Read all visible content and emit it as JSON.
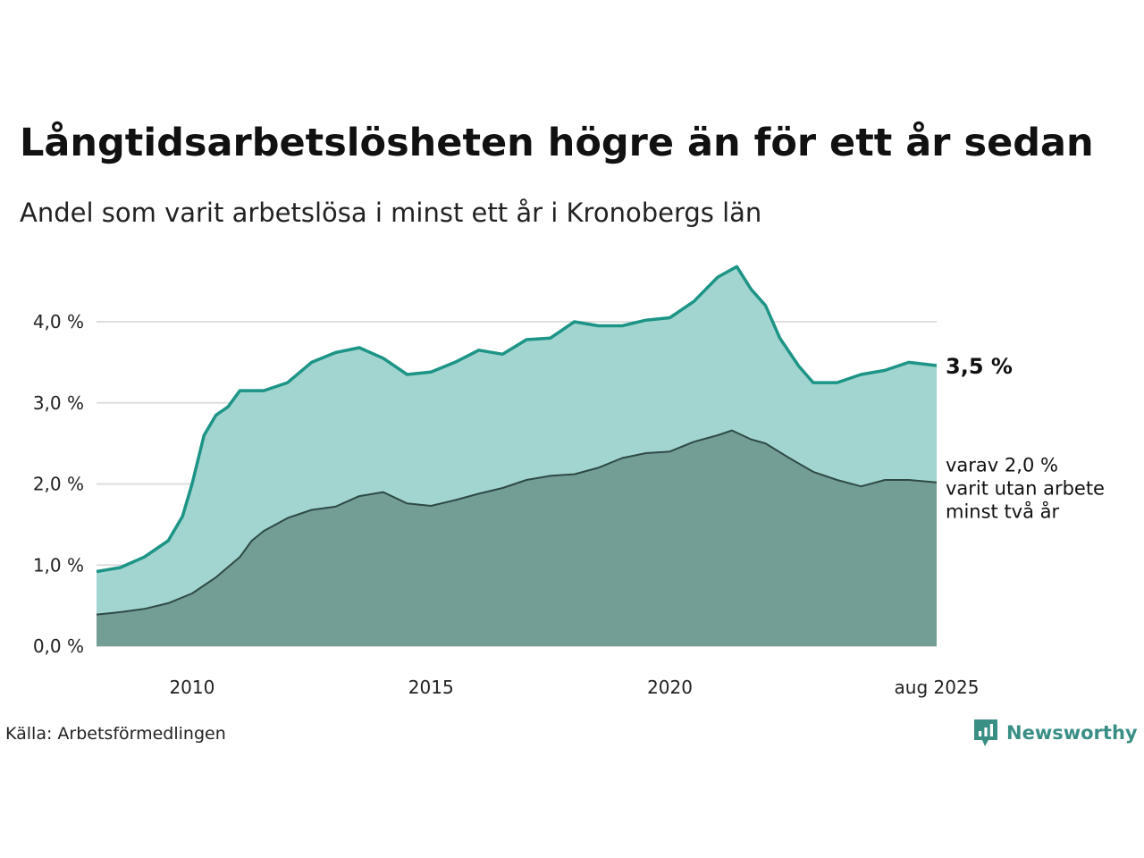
{
  "header": {
    "title": "Långtidsarbetslösheten högre än för ett år sedan",
    "subtitle": "Andel som varit arbetslösa i minst ett år i Kronobergs län"
  },
  "footer": {
    "source": "Källa: Arbetsförmedlingen",
    "logo_text": "Newsworthy",
    "logo_icon": "bar-chart-speech-bubble-icon"
  },
  "colors": {
    "upper_fill": "#a2d5cf",
    "upper_line": "#1c9486",
    "lower_fill": "#739e96",
    "lower_line": "#2e4a45",
    "grid": "#dddddd",
    "brand": "#3a8f85"
  },
  "chart_data": {
    "type": "area",
    "ylim": [
      0,
      4.5
    ],
    "x_range": [
      2008.0,
      2025.583
    ],
    "y_ticks": [
      0,
      1,
      2,
      3,
      4
    ],
    "y_tick_labels": [
      "0,0 %",
      "1,0 %",
      "2,0 %",
      "3,0 %",
      "4,0 %"
    ],
    "x_ticks": [
      2010,
      2015,
      2020,
      2025.583
    ],
    "x_tick_labels": [
      "2010",
      "2015",
      "2020",
      "aug 2025"
    ],
    "grid": true,
    "series": [
      {
        "key": "one_year",
        "end_label": "3,5 %",
        "points": [
          [
            2008.0,
            0.92
          ],
          [
            2008.5,
            0.97
          ],
          [
            2009.0,
            1.1
          ],
          [
            2009.5,
            1.3
          ],
          [
            2009.8,
            1.6
          ],
          [
            2010.0,
            2.0
          ],
          [
            2010.25,
            2.6
          ],
          [
            2010.5,
            2.85
          ],
          [
            2010.75,
            2.95
          ],
          [
            2011.0,
            3.15
          ],
          [
            2011.5,
            3.15
          ],
          [
            2012.0,
            3.25
          ],
          [
            2012.5,
            3.5
          ],
          [
            2013.0,
            3.62
          ],
          [
            2013.5,
            3.68
          ],
          [
            2014.0,
            3.55
          ],
          [
            2014.5,
            3.35
          ],
          [
            2015.0,
            3.38
          ],
          [
            2015.5,
            3.5
          ],
          [
            2016.0,
            3.65
          ],
          [
            2016.5,
            3.6
          ],
          [
            2017.0,
            3.78
          ],
          [
            2017.5,
            3.8
          ],
          [
            2018.0,
            4.0
          ],
          [
            2018.5,
            3.95
          ],
          [
            2019.0,
            3.95
          ],
          [
            2019.5,
            4.02
          ],
          [
            2020.0,
            4.05
          ],
          [
            2020.5,
            4.25
          ],
          [
            2021.0,
            4.55
          ],
          [
            2021.4,
            4.68
          ],
          [
            2021.7,
            4.4
          ],
          [
            2022.0,
            4.2
          ],
          [
            2022.3,
            3.8
          ],
          [
            2022.7,
            3.45
          ],
          [
            2023.0,
            3.25
          ],
          [
            2023.5,
            3.25
          ],
          [
            2024.0,
            3.35
          ],
          [
            2024.5,
            3.4
          ],
          [
            2025.0,
            3.5
          ],
          [
            2025.583,
            3.46
          ]
        ]
      },
      {
        "key": "two_years",
        "end_label_lines": [
          "varav 2,0 %",
          "varit utan arbete",
          "minst två år"
        ],
        "points": [
          [
            2008.0,
            0.39
          ],
          [
            2008.5,
            0.42
          ],
          [
            2009.0,
            0.46
          ],
          [
            2009.5,
            0.53
          ],
          [
            2010.0,
            0.65
          ],
          [
            2010.5,
            0.85
          ],
          [
            2011.0,
            1.1
          ],
          [
            2011.25,
            1.3
          ],
          [
            2011.5,
            1.42
          ],
          [
            2012.0,
            1.58
          ],
          [
            2012.5,
            1.68
          ],
          [
            2013.0,
            1.72
          ],
          [
            2013.5,
            1.85
          ],
          [
            2014.0,
            1.9
          ],
          [
            2014.5,
            1.76
          ],
          [
            2015.0,
            1.73
          ],
          [
            2015.5,
            1.8
          ],
          [
            2016.0,
            1.88
          ],
          [
            2016.5,
            1.95
          ],
          [
            2017.0,
            2.05
          ],
          [
            2017.5,
            2.1
          ],
          [
            2018.0,
            2.12
          ],
          [
            2018.5,
            2.2
          ],
          [
            2019.0,
            2.32
          ],
          [
            2019.5,
            2.38
          ],
          [
            2020.0,
            2.4
          ],
          [
            2020.5,
            2.52
          ],
          [
            2021.0,
            2.6
          ],
          [
            2021.3,
            2.66
          ],
          [
            2021.7,
            2.55
          ],
          [
            2022.0,
            2.5
          ],
          [
            2022.5,
            2.32
          ],
          [
            2023.0,
            2.15
          ],
          [
            2023.5,
            2.05
          ],
          [
            2024.0,
            1.97
          ],
          [
            2024.5,
            2.05
          ],
          [
            2025.0,
            2.05
          ],
          [
            2025.583,
            2.02
          ]
        ]
      }
    ]
  }
}
